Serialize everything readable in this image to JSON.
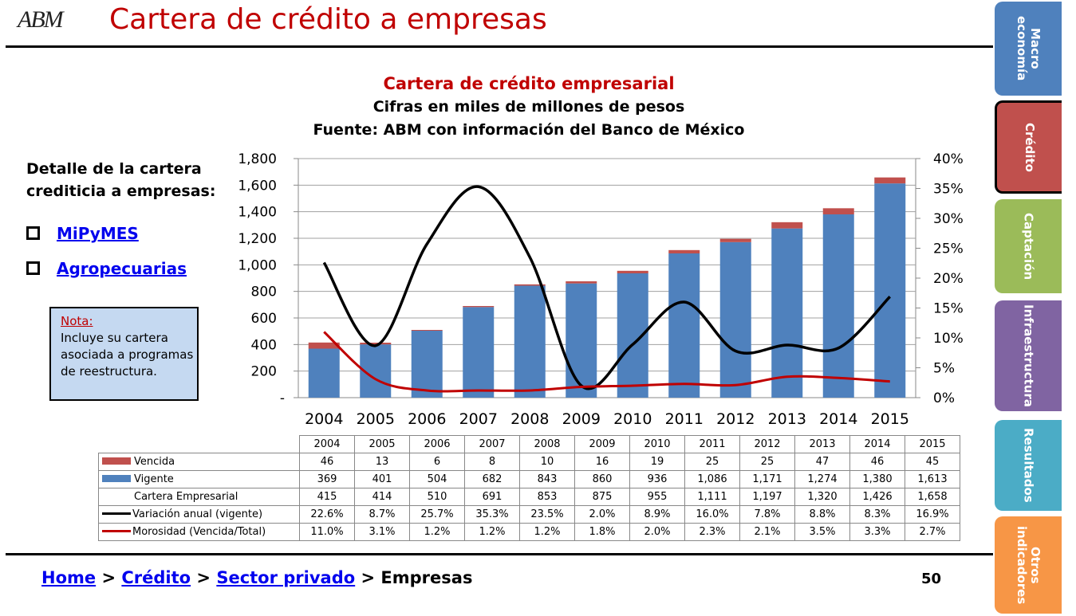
{
  "header": {
    "logo_text": "ABM",
    "title": "Cartera de crédito a empresas"
  },
  "chart_heading": {
    "title": "Cartera de crédito empresarial",
    "subtitle": "Cifras en miles de millones de pesos",
    "source": "Fuente: ABM con información del Banco de México"
  },
  "sidebar_left": {
    "heading_line1": "Detalle de la cartera",
    "heading_line2": "crediticia a empresas:",
    "links": [
      "MiPyMES",
      "Agropecuarias"
    ],
    "note_title": "Nota:",
    "note_text": "Incluye su cartera asociada a programas de reestructura."
  },
  "chart_data": {
    "type": "bar",
    "categories": [
      "2004",
      "2005",
      "2006",
      "2007",
      "2008",
      "2009",
      "2010",
      "2011",
      "2012",
      "2013",
      "2014",
      "2015"
    ],
    "y_left_ticks": [
      "-",
      "200",
      "400",
      "600",
      "800",
      "1,000",
      "1,200",
      "1,400",
      "1,600",
      "1,800"
    ],
    "y_right_ticks": [
      "0%",
      "5%",
      "10%",
      "15%",
      "20%",
      "25%",
      "30%",
      "35%",
      "40%"
    ],
    "ylim": [
      0,
      1800
    ],
    "y2lim": [
      0,
      40
    ],
    "grid": true,
    "series": [
      {
        "name": "Vencida",
        "kind": "stacked-bar",
        "color": "#c0504d",
        "values": [
          46,
          13,
          6,
          8,
          10,
          16,
          19,
          25,
          25,
          47,
          46,
          45
        ],
        "display": [
          "46",
          "13",
          "6",
          "8",
          "10",
          "16",
          "19",
          "25",
          "25",
          "47",
          "46",
          "45"
        ]
      },
      {
        "name": "Vigente",
        "kind": "stacked-bar",
        "color": "#4f81bd",
        "values": [
          369,
          401,
          504,
          682,
          843,
          860,
          936,
          1086,
          1171,
          1274,
          1380,
          1613
        ],
        "display": [
          "369",
          "401",
          "504",
          "682",
          "843",
          "860",
          "936",
          "1,086",
          "1,171",
          "1,274",
          "1,380",
          "1,613"
        ]
      },
      {
        "name": "Cartera Empresarial",
        "kind": "total",
        "values": [
          415,
          414,
          510,
          691,
          853,
          875,
          955,
          1111,
          1197,
          1320,
          1426,
          1658
        ],
        "display": [
          "415",
          "414",
          "510",
          "691",
          "853",
          "875",
          "955",
          "1,111",
          "1,197",
          "1,320",
          "1,426",
          "1,658"
        ]
      },
      {
        "name": "Variación anual (vigente)",
        "kind": "line-right",
        "color": "#000000",
        "values": [
          22.6,
          8.7,
          25.7,
          35.3,
          23.5,
          2.0,
          8.9,
          16.0,
          7.8,
          8.8,
          8.3,
          16.9
        ],
        "display": [
          "22.6%",
          "8.7%",
          "25.7%",
          "35.3%",
          "23.5%",
          "2.0%",
          "8.9%",
          "16.0%",
          "7.8%",
          "8.8%",
          "8.3%",
          "16.9%"
        ]
      },
      {
        "name": "Morosidad (Vencida/Total)",
        "kind": "line-right",
        "color": "#c00000",
        "values": [
          11.0,
          3.1,
          1.2,
          1.2,
          1.2,
          1.8,
          2.0,
          2.3,
          2.1,
          3.5,
          3.3,
          2.7
        ],
        "display": [
          "11.0%",
          "3.1%",
          "1.2%",
          "1.2%",
          "1.2%",
          "1.8%",
          "2.0%",
          "2.3%",
          "2.1%",
          "3.5%",
          "3.3%",
          "2.7%"
        ]
      }
    ]
  },
  "footer": {
    "breadcrumb": [
      "Home",
      "Crédito",
      "Sector privado",
      "Empresas"
    ],
    "separator": ">",
    "page_number": "50"
  },
  "side_tabs": [
    {
      "label": "Macro\neconomía",
      "color": "#4f81bd",
      "active": false
    },
    {
      "label": "Crédito",
      "color": "#c0504d",
      "active": true
    },
    {
      "label": "Captación",
      "color": "#9bbb59",
      "active": false
    },
    {
      "label": "Infraestructura",
      "color": "#8064a2",
      "active": false
    },
    {
      "label": "Resultados",
      "color": "#4bacc6",
      "active": false
    },
    {
      "label": "Otros\nindicadores",
      "color": "#f79646",
      "active": false
    }
  ]
}
